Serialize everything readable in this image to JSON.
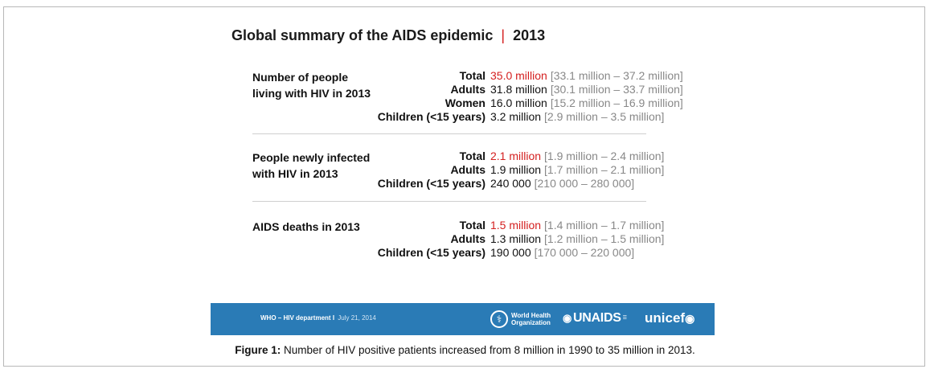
{
  "title": {
    "main": "Global summary of the AIDS epidemic",
    "separator": "|",
    "year": "2013"
  },
  "sections": [
    {
      "label_line1": "Number of people",
      "label_line2": "living with HIV in 2013",
      "rows": [
        {
          "category": "Total",
          "value": "35.0 million",
          "range": "[33.1 million – 37.2 million]",
          "highlight": true
        },
        {
          "category": "Adults",
          "value": "31.8 million",
          "range": "[30.1 million – 33.7 million]",
          "highlight": false
        },
        {
          "category": "Women",
          "value": "16.0 million",
          "range": "[15.2 million – 16.9 million]",
          "highlight": false
        },
        {
          "category": "Children (<15 years)",
          "value": "3.2 million",
          "range": "[2.9 million – 3.5 million]",
          "highlight": false
        }
      ]
    },
    {
      "label_line1": "People newly infected",
      "label_line2": "with HIV in 2013",
      "rows": [
        {
          "category": "Total",
          "value": "2.1 million",
          "range": "[1.9 million – 2.4 million]",
          "highlight": true
        },
        {
          "category": "Adults",
          "value": "1.9 million",
          "range": "[1.7 million – 2.1 million]",
          "highlight": false
        },
        {
          "category": "Children (<15 years)",
          "value": "240 000",
          "range": "[210 000 – 280 000]",
          "highlight": false
        }
      ]
    },
    {
      "label_line1": "AIDS deaths in 2013",
      "label_line2": "",
      "rows": [
        {
          "category": "Total",
          "value": "1.5 million",
          "range": "[1.4 million – 1.7 million]",
          "highlight": true
        },
        {
          "category": "Adults",
          "value": "1.3 million",
          "range": "[1.2 million – 1.5 million]",
          "highlight": false
        },
        {
          "category": "Children (<15 years)",
          "value": "190 000",
          "range": "[170 000 – 220 000]",
          "highlight": false
        }
      ]
    }
  ],
  "banner": {
    "source": "WHO – HIV department",
    "divider": "I",
    "date": "July 21, 2014",
    "who_line1": "World Health",
    "who_line2": "Organization",
    "unaids": "UNAIDS",
    "unicef": "unicef"
  },
  "caption": {
    "label": "Figure 1:",
    "text": "Number of HIV positive patients increased from 8 million in 1990 to 35 million in 2013."
  },
  "colors": {
    "highlight": "#d41f1f",
    "range_gray": "#888888",
    "banner_blue": "#2a7bb6"
  }
}
